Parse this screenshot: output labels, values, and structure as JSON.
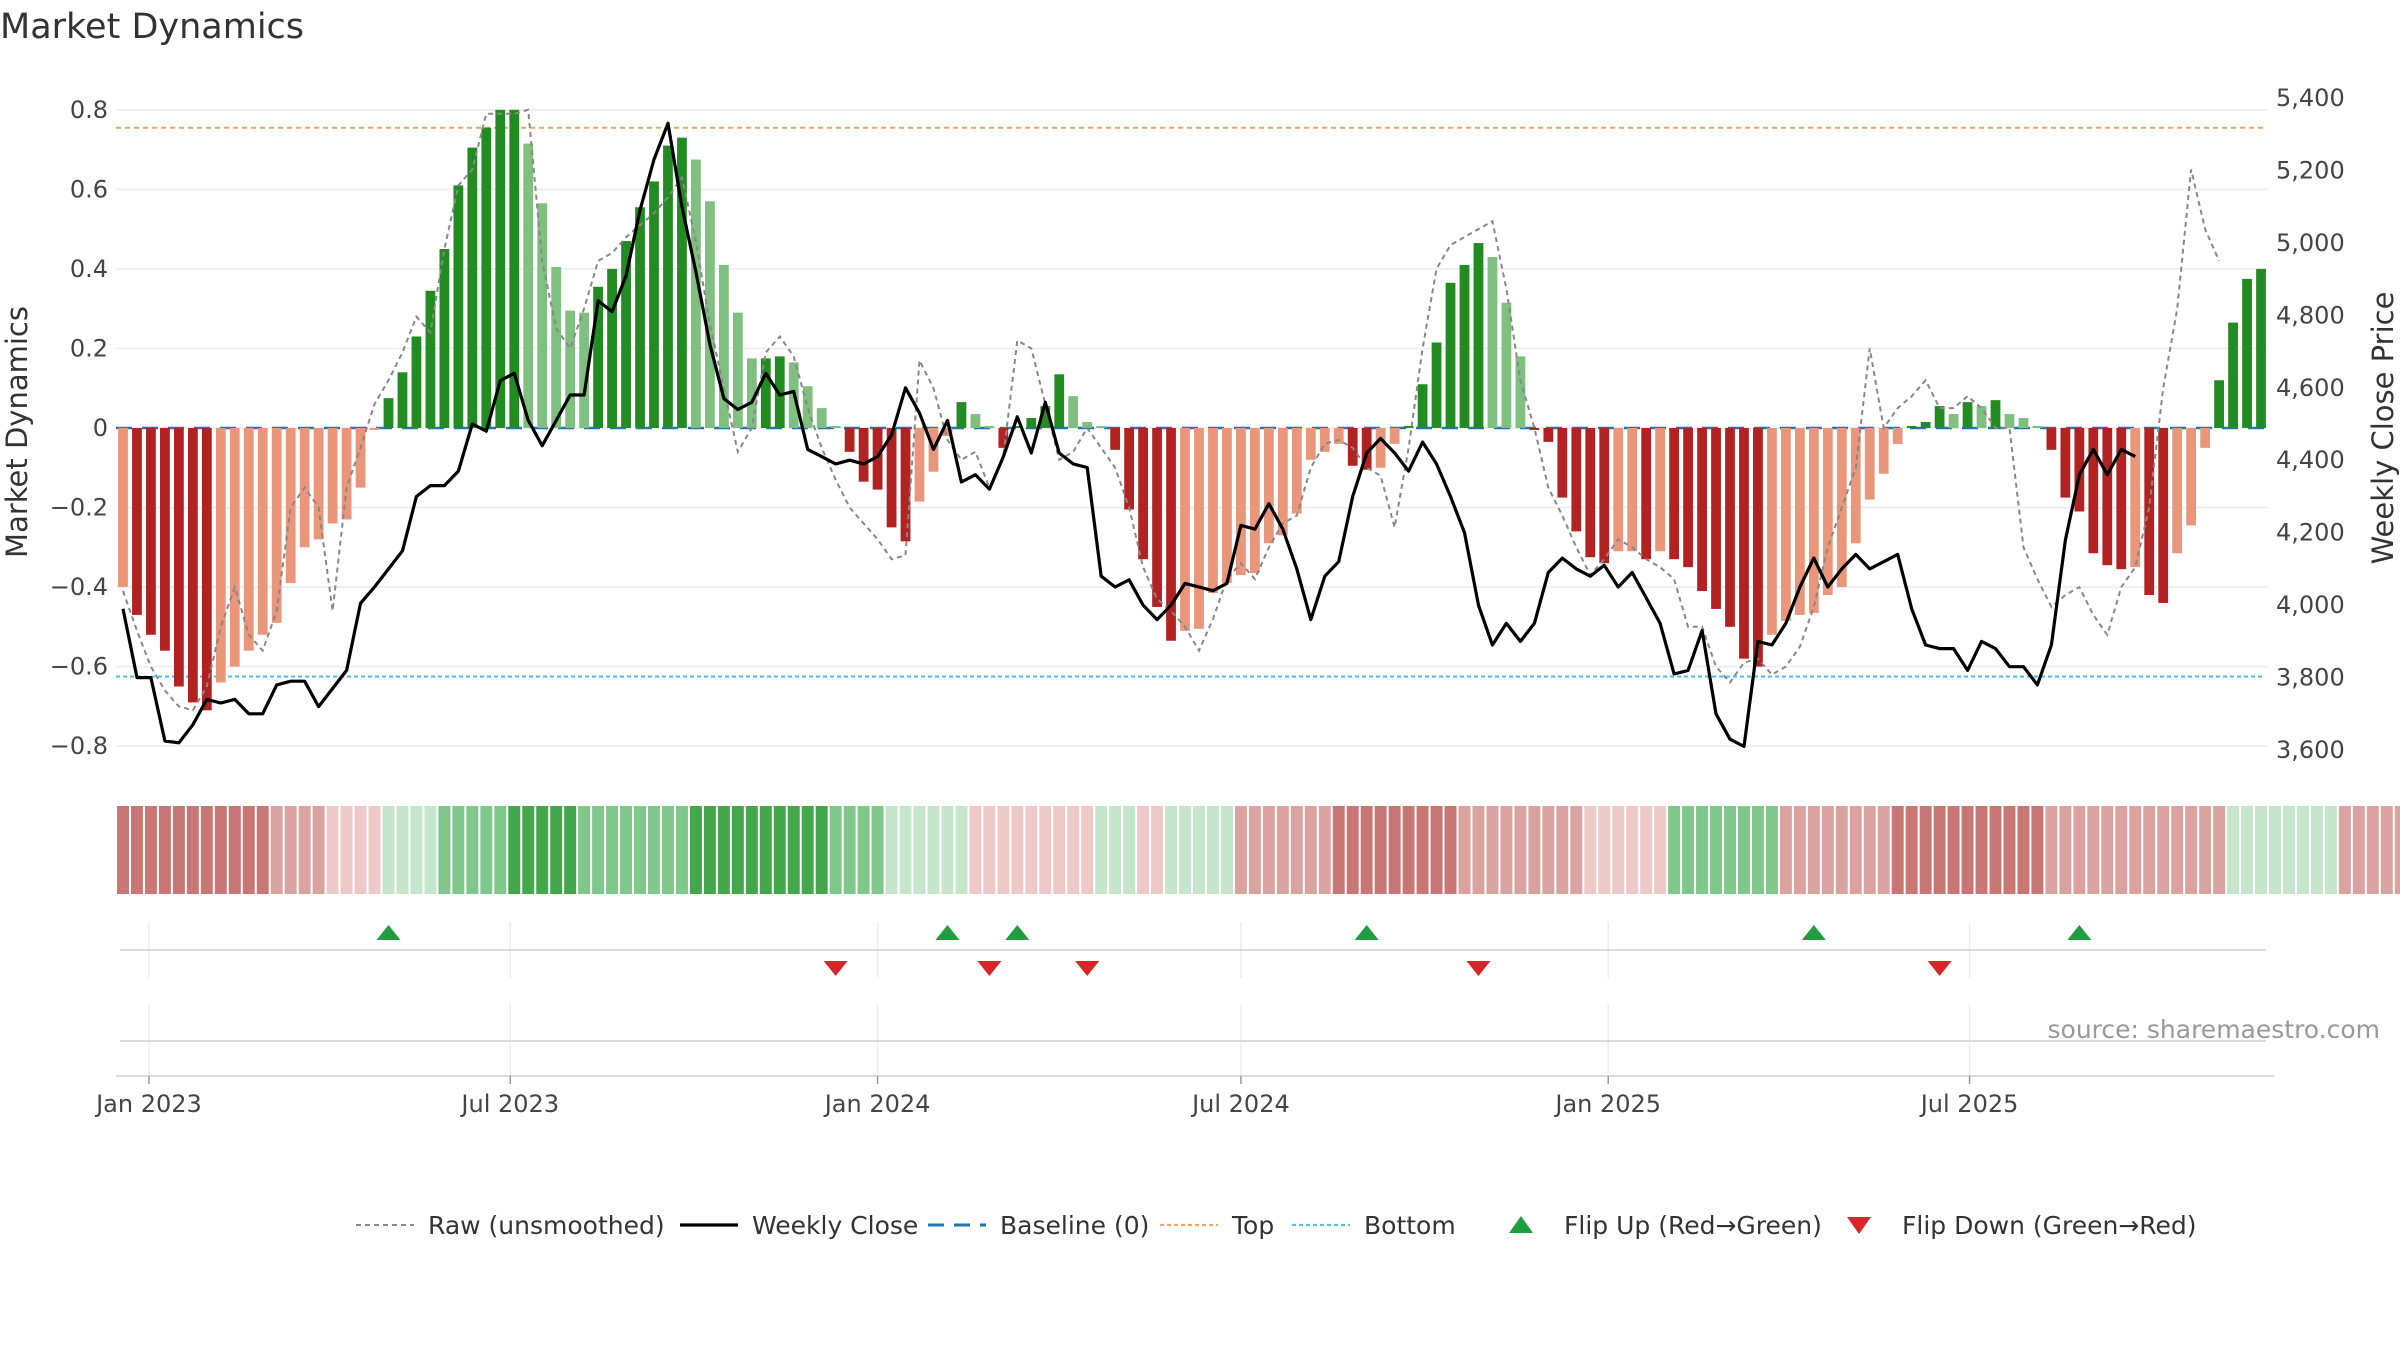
{
  "chart_data": {
    "type": "bar",
    "title": "Market Dynamics",
    "ylabel_left": "Market Dynamics",
    "ylabel_right": "Weekly Close Price",
    "ylim_left": [
      -0.86,
      0.88
    ],
    "ylim_right": [
      3545,
      5455
    ],
    "yticks_left": [
      "−0.8",
      "−0.6",
      "−0.4",
      "−0.2",
      "0",
      "0.2",
      "0.4",
      "0.6",
      "0.8"
    ],
    "yticks_left_values": [
      -0.8,
      -0.6,
      -0.4,
      -0.2,
      0,
      0.2,
      0.4,
      0.6,
      0.8
    ],
    "yticks_right": [
      "3,600",
      "3,800",
      "4,000",
      "4,200",
      "4,400",
      "4,600",
      "4,800",
      "5,000",
      "5,200",
      "5,400"
    ],
    "yticks_right_values": [
      3600,
      3800,
      4000,
      4200,
      4400,
      4600,
      4800,
      5000,
      5200,
      5400
    ],
    "x_start": "2022-12-19",
    "week_days": 7,
    "xticks": [
      {
        "label": "Jan 2023",
        "date": "2023-01-01"
      },
      {
        "label": "Jul 2023",
        "date": "2023-07-01"
      },
      {
        "label": "Jan 2024",
        "date": "2024-01-01"
      },
      {
        "label": "Jul 2024",
        "date": "2024-07-01"
      },
      {
        "label": "Jan 2025",
        "date": "2025-01-01"
      },
      {
        "label": "Jul 2025",
        "date": "2025-07-01"
      }
    ],
    "top_level": 0.755,
    "bottom_level": -0.625,
    "baseline_level": 0,
    "grid": true,
    "legend_position": "bottom",
    "colors": {
      "strong_green": "#228B22",
      "light_green": "#7fbf7f",
      "strong_red": "#b22222",
      "light_red": "#e9967a",
      "close_line": "#000000",
      "raw_line": "#888888",
      "baseline": "#1f77b4",
      "top": "#f4a460",
      "bottom": "#5bc0de",
      "flip_up": "#1e9e3e",
      "flip_down": "#d62728"
    },
    "series": [
      {
        "name": "Market Dynamics",
        "values": [
          -0.4,
          -0.47,
          -0.52,
          -0.56,
          -0.65,
          -0.69,
          -0.71,
          -0.64,
          -0.6,
          -0.56,
          -0.52,
          -0.49,
          -0.39,
          -0.3,
          -0.28,
          -0.24,
          -0.23,
          -0.15,
          -0.005,
          0.075,
          0.14,
          0.23,
          0.345,
          0.45,
          0.61,
          0.705,
          0.755,
          0.8,
          0.8,
          0.715,
          0.565,
          0.405,
          0.295,
          0.29,
          0.355,
          0.4,
          0.47,
          0.555,
          0.62,
          0.71,
          0.73,
          0.675,
          0.57,
          0.41,
          0.29,
          0.175,
          0.175,
          0.18,
          0.165,
          0.105,
          0.05,
          0.005,
          -0.06,
          -0.135,
          -0.155,
          -0.25,
          -0.285,
          -0.185,
          -0.11,
          -0.02,
          0.065,
          0.035,
          0.005,
          -0.05,
          0.005,
          0.025,
          0.055,
          0.135,
          0.08,
          0.015,
          0.005,
          -0.055,
          -0.205,
          -0.33,
          -0.45,
          -0.535,
          -0.51,
          -0.505,
          -0.415,
          -0.39,
          -0.37,
          -0.365,
          -0.29,
          -0.27,
          -0.215,
          -0.08,
          -0.06,
          -0.04,
          -0.095,
          -0.105,
          -0.1,
          -0.04,
          0.005,
          0.11,
          0.215,
          0.365,
          0.41,
          0.465,
          0.43,
          0.315,
          0.18,
          -0.005,
          -0.035,
          -0.175,
          -0.26,
          -0.325,
          -0.34,
          -0.31,
          -0.31,
          -0.33,
          -0.31,
          -0.33,
          -0.35,
          -0.41,
          -0.455,
          -0.5,
          -0.58,
          -0.6,
          -0.52,
          -0.485,
          -0.47,
          -0.465,
          -0.42,
          -0.4,
          -0.29,
          -0.18,
          -0.115,
          -0.04,
          0.005,
          0.015,
          0.055,
          0.035,
          0.065,
          0.055,
          0.07,
          0.035,
          0.025,
          0.005,
          -0.055,
          -0.175,
          -0.21,
          -0.315,
          -0.345,
          -0.355,
          -0.35,
          -0.42,
          -0.44,
          -0.315,
          -0.245,
          -0.05,
          0.12,
          0.265,
          0.375,
          0.4
        ]
      },
      {
        "name": "Raw (unsmoothed)",
        "values": [
          -0.41,
          -0.51,
          -0.6,
          -0.66,
          -0.7,
          -0.71,
          -0.65,
          -0.5,
          -0.4,
          -0.52,
          -0.56,
          -0.46,
          -0.2,
          -0.15,
          -0.2,
          -0.46,
          -0.15,
          -0.05,
          0.06,
          0.12,
          0.19,
          0.28,
          0.24,
          0.45,
          0.61,
          0.65,
          0.79,
          0.79,
          0.79,
          0.8,
          0.42,
          0.25,
          0.2,
          0.3,
          0.42,
          0.44,
          0.48,
          0.51,
          0.54,
          0.58,
          0.63,
          0.47,
          0.26,
          0.1,
          -0.06,
          0.0,
          0.19,
          0.23,
          0.18,
          0.05,
          -0.05,
          -0.13,
          -0.2,
          -0.24,
          -0.28,
          -0.33,
          -0.32,
          0.17,
          0.1,
          -0.03,
          -0.08,
          -0.06,
          -0.15,
          -0.07,
          0.22,
          0.2,
          0.06,
          -0.08,
          -0.06,
          0.0,
          -0.05,
          -0.1,
          -0.2,
          -0.35,
          -0.43,
          -0.46,
          -0.5,
          -0.56,
          -0.48,
          -0.38,
          -0.34,
          -0.38,
          -0.3,
          -0.24,
          -0.22,
          -0.1,
          -0.04,
          -0.03,
          -0.05,
          -0.1,
          -0.12,
          -0.25,
          -0.05,
          0.2,
          0.4,
          0.46,
          0.48,
          0.5,
          0.52,
          0.35,
          0.12,
          0.0,
          -0.15,
          -0.22,
          -0.3,
          -0.37,
          -0.33,
          -0.28,
          -0.3,
          -0.33,
          -0.35,
          -0.38,
          -0.5,
          -0.5,
          -0.6,
          -0.64,
          -0.59,
          -0.58,
          -0.62,
          -0.6,
          -0.55,
          -0.45,
          -0.3,
          -0.2,
          -0.1,
          0.2,
          0.0,
          0.05,
          0.08,
          0.12,
          0.05,
          0.05,
          0.08,
          0.05,
          0.0,
          0.0,
          -0.3,
          -0.38,
          -0.45,
          -0.42,
          -0.4,
          -0.47,
          -0.52,
          -0.4,
          -0.35,
          -0.2,
          0.1,
          0.3,
          0.65,
          0.5,
          0.42
        ]
      },
      {
        "name": "Weekly Close",
        "values": [
          3990,
          3800,
          3800,
          3625,
          3620,
          3670,
          3740,
          3730,
          3740,
          3700,
          3700,
          3780,
          3790,
          3790,
          3720,
          3770,
          3820,
          4005,
          4050,
          4100,
          4150,
          4300,
          4330,
          4330,
          4370,
          4500,
          4480,
          4620,
          4640,
          4510,
          4440,
          4510,
          4580,
          4580,
          4840,
          4810,
          4910,
          5090,
          5230,
          5330,
          5100,
          4920,
          4720,
          4570,
          4540,
          4560,
          4640,
          4580,
          4590,
          4430,
          4410,
          4390,
          4400,
          4390,
          4410,
          4470,
          4600,
          4530,
          4430,
          4510,
          4340,
          4360,
          4320,
          4410,
          4520,
          4420,
          4560,
          4420,
          4390,
          4380,
          4080,
          4050,
          4070,
          4000,
          3960,
          4000,
          4060,
          4050,
          4040,
          4060,
          4220,
          4210,
          4280,
          4210,
          4100,
          3960,
          4080,
          4120,
          4300,
          4420,
          4460,
          4420,
          4370,
          4450,
          4390,
          4300,
          4200,
          4000,
          3890,
          3950,
          3900,
          3950,
          4090,
          4130,
          4100,
          4080,
          4110,
          4050,
          4090,
          4020,
          3950,
          3810,
          3820,
          3930,
          3700,
          3630,
          3610,
          3900,
          3890,
          3950,
          4050,
          4130,
          4050,
          4100,
          4140,
          4100,
          4120,
          4140,
          3990,
          3890,
          3880,
          3880,
          3820,
          3900,
          3880,
          3830,
          3830,
          3780,
          3890,
          4180,
          4360,
          4430,
          4360,
          4430,
          4410
        ]
      }
    ],
    "regime_strip": [
      -3,
      -3,
      -3,
      -3,
      -3,
      -3,
      -3,
      -3,
      -3,
      -3,
      -3,
      -2,
      -2,
      -2,
      -2,
      -1,
      -1,
      -1,
      -1,
      1,
      1,
      1,
      1,
      2,
      2,
      2,
      2,
      2,
      3,
      3,
      3,
      3,
      3,
      2,
      2,
      2,
      2,
      2,
      2,
      2,
      2,
      3,
      3,
      3,
      3,
      3,
      3,
      3,
      3,
      3,
      3,
      2,
      2,
      2,
      2,
      1,
      1,
      1,
      1,
      1,
      1,
      -1,
      -1,
      -1,
      -1,
      -1,
      -1,
      -1,
      -1,
      -1,
      1,
      1,
      1,
      -1,
      -1,
      1,
      1,
      1,
      1,
      1,
      -2,
      -2,
      -2,
      -2,
      -2,
      -2,
      -2,
      -3,
      -3,
      -3,
      -3,
      -3,
      -3,
      -3,
      -3,
      -3,
      -2,
      -2,
      -2,
      -2,
      -2,
      -2,
      -2,
      -2,
      -2,
      -1,
      -1,
      -1,
      -1,
      -1,
      -1,
      2,
      2,
      2,
      2,
      2,
      2,
      2,
      2,
      -2,
      -2,
      -2,
      -2,
      -2,
      -2,
      -2,
      -2,
      -3,
      -3,
      -3,
      -3,
      -3,
      -3,
      -3,
      -3,
      -3,
      -3,
      -3,
      -2,
      -2,
      -2,
      -2,
      -2,
      -2,
      -2,
      -2,
      -2,
      -2,
      -2,
      -2,
      -2,
      1,
      1,
      1,
      1,
      1,
      1,
      1,
      1,
      -2,
      -2,
      -2,
      -2,
      -2,
      -2,
      -2,
      -2,
      -2,
      -2,
      -1,
      2,
      2,
      2,
      2
    ],
    "flip_up_weeks": [
      19,
      59,
      64,
      89,
      121,
      140
    ],
    "flip_down_weeks": [
      51,
      62,
      69,
      97,
      130
    ]
  },
  "legend": [
    {
      "label": "Raw (unsmoothed)",
      "kind": "dashed-line",
      "color": "#888888"
    },
    {
      "label": "Weekly Close",
      "kind": "solid-line",
      "color": "#000000"
    },
    {
      "label": "Baseline (0)",
      "kind": "long-dash",
      "color": "#1f77b4"
    },
    {
      "label": "Top",
      "kind": "dotted-line",
      "color": "#f4a460"
    },
    {
      "label": "Bottom",
      "kind": "dotted-line",
      "color": "#5bc0de"
    },
    {
      "label": "Flip Up (Red→Green)",
      "kind": "up-triangle",
      "color": "#1e9e3e"
    },
    {
      "label": "Flip Down (Green→Red)",
      "kind": "down-triangle",
      "color": "#d62728"
    }
  ],
  "source": "source: sharemaestro.com"
}
